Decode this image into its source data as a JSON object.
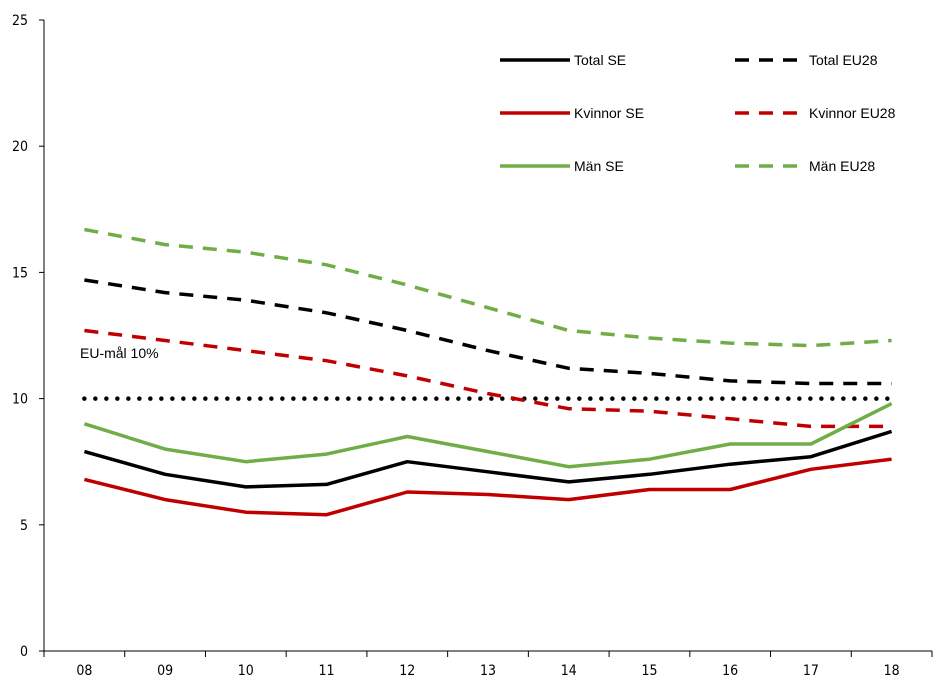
{
  "chart_data": {
    "type": "line",
    "categories": [
      "08",
      "09",
      "10",
      "11",
      "12",
      "13",
      "14",
      "15",
      "16",
      "17",
      "18"
    ],
    "ylim": [
      0,
      25
    ],
    "yticks": [
      0,
      5,
      10,
      15,
      20,
      25
    ],
    "grid": false,
    "legend_placement": "top-right",
    "annotation": "EU-mål 10%",
    "target_line": {
      "value": 10,
      "style": "dotted",
      "color": "#000000"
    },
    "series": [
      {
        "name": "Total SE",
        "color": "#000000",
        "style": "solid",
        "values": [
          7.9,
          7.0,
          6.5,
          6.6,
          7.5,
          7.1,
          6.7,
          7.0,
          7.4,
          7.7,
          8.7
        ]
      },
      {
        "name": "Total EU28",
        "color": "#000000",
        "style": "dashed",
        "values": [
          14.7,
          14.2,
          13.9,
          13.4,
          12.7,
          11.9,
          11.2,
          11.0,
          10.7,
          10.6,
          10.6
        ]
      },
      {
        "name": "Kvinnor SE",
        "color": "#c00000",
        "style": "solid",
        "values": [
          6.8,
          6.0,
          5.5,
          5.4,
          6.3,
          6.2,
          6.0,
          6.4,
          6.4,
          7.2,
          7.6
        ]
      },
      {
        "name": "Kvinnor EU28",
        "color": "#c00000",
        "style": "dashed",
        "values": [
          12.7,
          12.3,
          11.9,
          11.5,
          10.9,
          10.2,
          9.6,
          9.5,
          9.2,
          8.9,
          8.9
        ]
      },
      {
        "name": "Män SE",
        "color": "#70ad47",
        "style": "solid",
        "values": [
          9.0,
          8.0,
          7.5,
          7.8,
          8.5,
          7.9,
          7.3,
          7.6,
          8.2,
          8.2,
          9.8
        ]
      },
      {
        "name": "Män EU28",
        "color": "#70ad47",
        "style": "dashed",
        "values": [
          16.7,
          16.1,
          15.8,
          15.3,
          14.5,
          13.6,
          12.7,
          12.4,
          12.2,
          12.1,
          12.3
        ]
      }
    ]
  }
}
